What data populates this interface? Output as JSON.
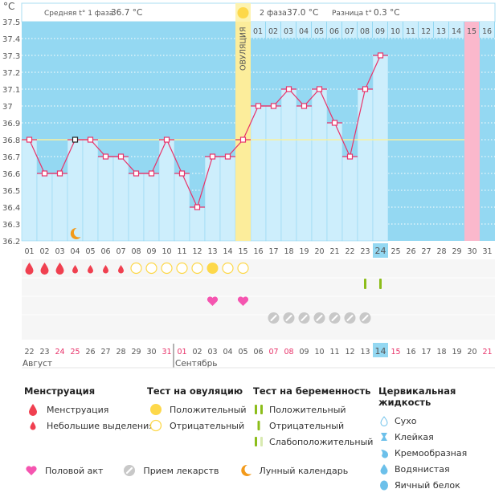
{
  "chart_data": {
    "type": "line",
    "title": "",
    "ylabel": "°C",
    "ylim": [
      36.2,
      37.5
    ],
    "yticks": [
      "37.5",
      "37.4",
      "37.3",
      "37.2",
      "37.1",
      "37",
      "36.9",
      "36.8",
      "36.7",
      "36.6",
      "36.5",
      "36.4",
      "36.3",
      "36.2"
    ],
    "coverline": 36.8,
    "cycle_days": [
      "01",
      "02",
      "03",
      "04",
      "05",
      "06",
      "07",
      "08",
      "09",
      "10",
      "11",
      "12",
      "13",
      "14",
      "15",
      "16",
      "17",
      "18",
      "19",
      "20",
      "21",
      "22",
      "23",
      "24",
      "25",
      "26",
      "27",
      "28",
      "29",
      "30",
      "31"
    ],
    "temperatures": [
      36.8,
      36.6,
      36.6,
      36.8,
      36.8,
      36.7,
      36.7,
      36.6,
      36.6,
      36.8,
      36.6,
      36.4,
      36.7,
      36.7,
      36.8,
      37.0,
      37.0,
      37.1,
      37.0,
      37.1,
      36.9,
      36.7,
      37.1,
      37.3,
      null,
      null,
      null,
      null,
      null,
      null,
      null
    ],
    "ovulation_day": 15,
    "ovulation_label": "ОВУЛЯЦИЯ",
    "luteal_days": [
      "01",
      "02",
      "03",
      "04",
      "05",
      "06",
      "07",
      "08",
      "09",
      "10",
      "11",
      "12",
      "13",
      "14",
      "15",
      "16"
    ],
    "expected_period_day": 30,
    "today_day": 24,
    "calendar_dates": [
      {
        "d": "22",
        "red": false
      },
      {
        "d": "23",
        "red": false
      },
      {
        "d": "24",
        "red": true
      },
      {
        "d": "25",
        "red": true
      },
      {
        "d": "26",
        "red": false
      },
      {
        "d": "27",
        "red": false
      },
      {
        "d": "28",
        "red": false
      },
      {
        "d": "29",
        "red": false
      },
      {
        "d": "30",
        "red": false
      },
      {
        "d": "31",
        "red": true
      },
      {
        "d": "01",
        "red": true
      },
      {
        "d": "02",
        "red": false
      },
      {
        "d": "03",
        "red": false
      },
      {
        "d": "04",
        "red": false
      },
      {
        "d": "05",
        "red": false
      },
      {
        "d": "06",
        "red": false
      },
      {
        "d": "07",
        "red": true
      },
      {
        "d": "08",
        "red": true
      },
      {
        "d": "09",
        "red": false
      },
      {
        "d": "10",
        "red": false
      },
      {
        "d": "11",
        "red": false
      },
      {
        "d": "12",
        "red": false
      },
      {
        "d": "13",
        "red": false
      },
      {
        "d": "14",
        "red": false
      },
      {
        "d": "15",
        "red": true
      },
      {
        "d": "16",
        "red": false
      },
      {
        "d": "17",
        "red": false
      },
      {
        "d": "18",
        "red": false
      },
      {
        "d": "19",
        "red": false
      },
      {
        "d": "20",
        "red": false
      },
      {
        "d": "21",
        "red": true
      }
    ],
    "months": [
      {
        "label": "Август",
        "start_day": 1
      },
      {
        "label": "Сентябрь",
        "start_day": 11
      }
    ],
    "today_date": "14",
    "menstruation": [
      {
        "day": 1,
        "type": "heavy"
      },
      {
        "day": 2,
        "type": "heavy"
      },
      {
        "day": 3,
        "type": "heavy"
      },
      {
        "day": 4,
        "type": "light"
      },
      {
        "day": 5,
        "type": "light"
      },
      {
        "day": 6,
        "type": "light"
      },
      {
        "day": 7,
        "type": "light"
      }
    ],
    "ovulation_tests": [
      {
        "day": 8,
        "result": "negative"
      },
      {
        "day": 9,
        "result": "negative"
      },
      {
        "day": 10,
        "result": "negative"
      },
      {
        "day": 11,
        "result": "negative"
      },
      {
        "day": 12,
        "result": "negative"
      },
      {
        "day": 13,
        "result": "positive"
      },
      {
        "day": 14,
        "result": "negative"
      },
      {
        "day": 15,
        "result": "negative"
      }
    ],
    "pregnancy_tests": [
      {
        "day": 23,
        "result": "negative"
      },
      {
        "day": 24,
        "result": "negative"
      }
    ],
    "intercourse_days": [
      13,
      15
    ],
    "medication_days": [
      17,
      18,
      19,
      20,
      21,
      22,
      23
    ],
    "lunar_days": [
      4
    ]
  },
  "header": {
    "phase1_label": "Средняя t° 1 фаза",
    "phase1_value": "36.7 °C",
    "phase2_label": "2 фаза",
    "phase2_value": "37.0 °C",
    "diff_label": "Разница t°",
    "diff_value": "0.3 °C"
  },
  "legend": {
    "menstruation": {
      "title": "Менструация",
      "items": [
        "Менструация",
        "Небольшие выделения"
      ]
    },
    "ovulation_test": {
      "title": "Тест на овуляцию",
      "items": [
        "Положительный",
        "Отрицательный"
      ]
    },
    "pregnancy_test": {
      "title": "Тест на беременность",
      "items": [
        "Положительный",
        "Отрицательный",
        "Слабоположительный"
      ]
    },
    "cervical": {
      "title": "Цервикальная жидкость",
      "items": [
        "Сухо",
        "Клейкая",
        "Кремообразная",
        "Водянистая",
        "Яичный белок"
      ]
    },
    "bottom": [
      "Половой акт",
      "Прием лекарств",
      "Лунный календарь"
    ]
  },
  "colors": {
    "sky": "#94d8f2",
    "pale": "#cdeefc",
    "ovulation": "#fdf3b0",
    "ovulation_head": "#fbe98e",
    "period": "#fbb8cc",
    "line": "#e8336a",
    "coverline": "#f8f0a0",
    "drop": "#f04050",
    "sun": "#fdd84a",
    "preg": "#8cbd1a",
    "preg_weak": "#d8eab0",
    "heart": "#f555b0",
    "pill": "#c8c8c8",
    "moon": "#f39a1a",
    "red_text": "#e8336a",
    "today": "#94d8f2"
  }
}
